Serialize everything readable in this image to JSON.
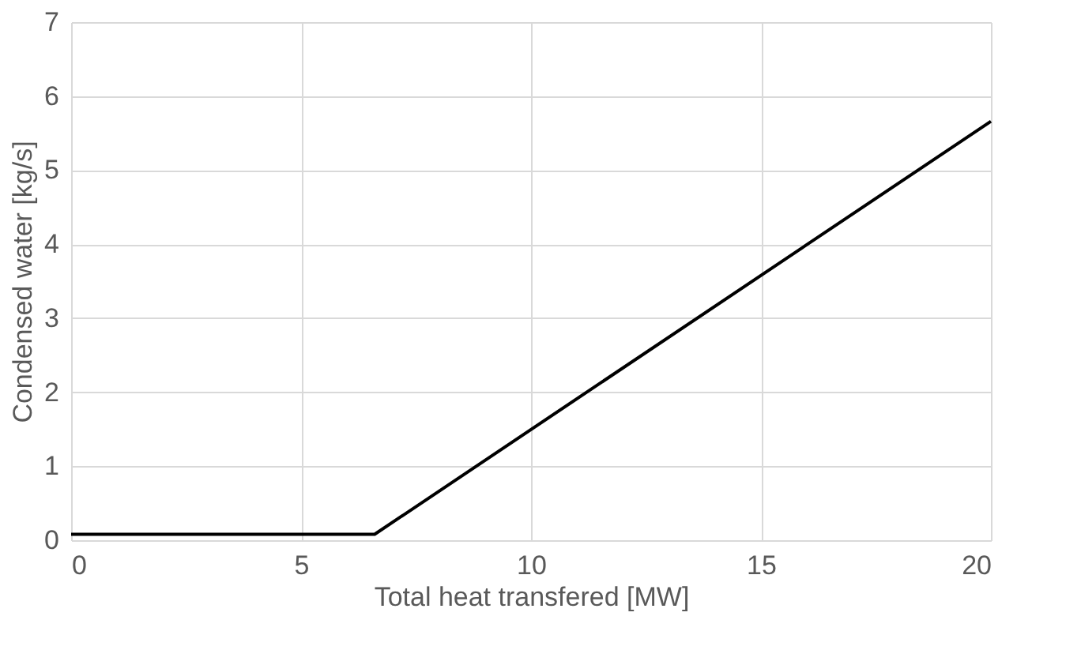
{
  "chart_data": {
    "type": "line",
    "xlabel": "Total heat transfered [MW]",
    "ylabel": "Condensed water [kg/s]",
    "series": [
      {
        "color": "#000000",
        "x": [
          0,
          6.6,
          20
        ],
        "values": [
          0.08,
          0.08,
          5.66
        ]
      }
    ],
    "xlim": [
      0,
      20
    ],
    "xticks": [
      0,
      5,
      10,
      15,
      20
    ],
    "ylim": [
      0,
      7
    ],
    "yticks": [
      0,
      1,
      2,
      3,
      4,
      5,
      6,
      7
    ],
    "grid": true,
    "legend": false,
    "marker": "none",
    "line_style": "solid"
  }
}
